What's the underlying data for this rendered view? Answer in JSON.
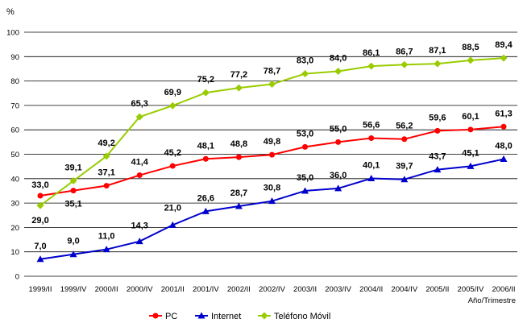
{
  "chart_data": {
    "type": "line",
    "y_unit_label": "%",
    "xlabel": "Año/Trimestre",
    "ylim": [
      0,
      100
    ],
    "yticks": [
      0,
      10,
      20,
      30,
      40,
      50,
      60,
      70,
      80,
      90,
      100
    ],
    "grid": true,
    "legend_position": "bottom",
    "categories": [
      "1999/II",
      "1999/IV",
      "2000/II",
      "2000/IV",
      "2001/II",
      "2001/IV",
      "2002/II",
      "2002/IV",
      "2003/II",
      "2003/IV",
      "2004/II",
      "2004/IV",
      "2005/II",
      "2005/IV",
      "2006/II"
    ],
    "series": [
      {
        "name": "PC",
        "color": "#ff0000",
        "marker": "circle",
        "values": [
          33.0,
          35.1,
          37.1,
          41.4,
          45.2,
          48.1,
          48.8,
          49.8,
          53.0,
          55.0,
          56.6,
          56.2,
          59.6,
          60.1,
          61.3
        ],
        "labels": [
          "33,0",
          "35,1",
          "37,1",
          "41,4",
          "45,2",
          "48,1",
          "48,8",
          "49,8",
          "53,0",
          "55,0",
          "56,6",
          "56,2",
          "59,6",
          "60,1",
          "61,3"
        ]
      },
      {
        "name": "Internet",
        "color": "#0000cc",
        "marker": "triangle",
        "values": [
          7.0,
          9.0,
          11.0,
          14.3,
          21.0,
          26.6,
          28.7,
          30.8,
          35.0,
          36.0,
          40.1,
          39.7,
          43.7,
          45.1,
          48.0
        ],
        "labels": [
          "7,0",
          "9,0",
          "11,0",
          "14,3",
          "21,0",
          "26,6",
          "28,7",
          "30,8",
          "35,0",
          "36,0",
          "40,1",
          "39,7",
          "43,7",
          "45,1",
          "48,0"
        ]
      },
      {
        "name": "Teléfono Móvil",
        "color": "#99cc00",
        "marker": "diamond",
        "values": [
          29.0,
          39.1,
          49.2,
          65.3,
          69.9,
          75.2,
          77.2,
          78.7,
          83.0,
          84.0,
          86.1,
          86.7,
          87.1,
          88.5,
          89.4
        ],
        "labels": [
          "29,0",
          "39,1",
          "49,2",
          "65,3",
          "69,9",
          "75,2",
          "77,2",
          "78,7",
          "83,0",
          "84,0",
          "86,1",
          "86,7",
          "87,1",
          "88,5",
          "89,4"
        ]
      }
    ]
  }
}
